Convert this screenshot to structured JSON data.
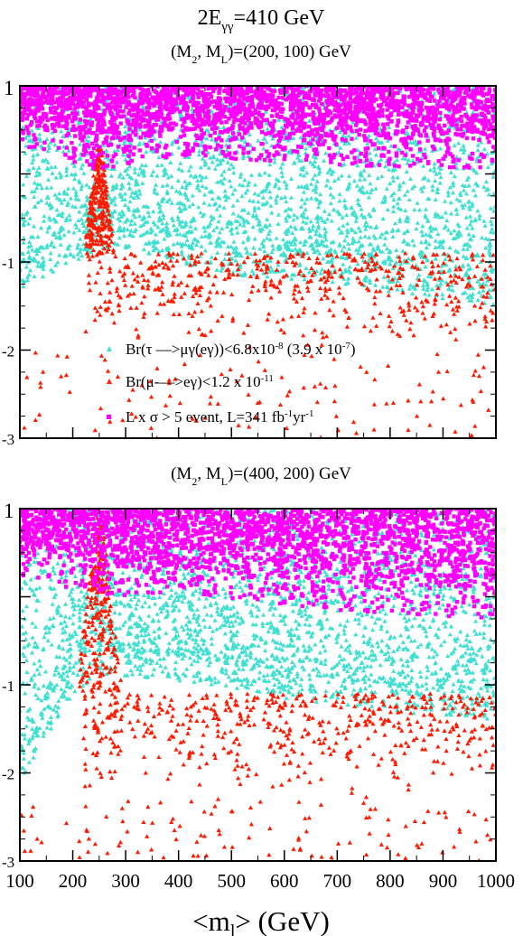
{
  "figure": {
    "title_main": "2E",
    "title_sub": "γγ",
    "title_rest": "=410 GeV",
    "xlabel_main": "<m",
    "xlabel_sub": "l",
    "xlabel_rest": ">  (GeV)"
  },
  "colors": {
    "cyan": "#40e0d0",
    "red": "#ff1a00",
    "magenta": "#ff00ff"
  },
  "legend": [
    {
      "color": "#40e0d0",
      "parts": [
        {
          "t": "Br(τ —>μγ(eγ))<6.8x10"
        },
        {
          "t": "-8",
          "sup": true
        },
        {
          "t": " (3.9 x 10"
        },
        {
          "t": "-7",
          "sup": true
        },
        {
          "t": ")"
        }
      ]
    },
    {
      "color": "#ff1a00",
      "parts": [
        {
          "t": "Br(μ-—>eγ)<1.2 x 10"
        },
        {
          "t": "-11",
          "sup": true
        }
      ]
    },
    {
      "color": "#ff00ff",
      "parts": [
        {
          "t": "L x σ > 5 event, L=341 fb"
        },
        {
          "t": "-1",
          "sup": true
        },
        {
          "t": "yr"
        },
        {
          "t": "-1",
          "sup": true
        }
      ]
    }
  ],
  "chart_data": [
    {
      "type": "scatter",
      "subtitle_parts": [
        {
          "t": "(M"
        },
        {
          "t": "2",
          "sub": true
        },
        {
          "t": ", M"
        },
        {
          "t": "L",
          "sub": true
        },
        {
          "t": ")=(200, 100) GeV"
        }
      ],
      "xlim": [
        100,
        1000
      ],
      "ylim": [
        -3,
        1
      ],
      "yticks": [
        "1",
        "-1",
        "-2",
        "-3"
      ],
      "series": [
        {
          "name": "Br(τ —>μγ(eγ))<6.8x10-8 (3.9 x 10-7)",
          "color": "#40e0d0",
          "region": "y from 1 down to approx -1.0 (x=100) / -0.55 (x=300) / -1.2 (x=1000); densest below 0"
        },
        {
          "name": "Br(μ-—>eγ)<1.2 x 10-11",
          "color": "#ff1a00",
          "region": "narrow spike at x≈250 reaching y≈0.3; broad band y≈-0.9 to -2.0 for x>250; sparse below"
        },
        {
          "name": "L x σ > 5 event, L=341 fb-1yr-1",
          "color": "#ff00ff",
          "region": "dense band y from ≈0.3–0.6 up to 1"
        }
      ],
      "legend_placement": "lower-center"
    },
    {
      "type": "scatter",
      "subtitle_parts": [
        {
          "t": "(M"
        },
        {
          "t": "2",
          "sub": true
        },
        {
          "t": ", M"
        },
        {
          "t": "L",
          "sub": true
        },
        {
          "t": ")=(400, 200) GeV"
        }
      ],
      "xlim": [
        100,
        1000
      ],
      "ylim": [
        -3,
        1
      ],
      "yticks": [
        "1",
        "-1",
        "-2",
        "-3"
      ],
      "xticks": [
        "100",
        "200",
        "300",
        "400",
        "500",
        "600",
        "700",
        "800",
        "900",
        "1000"
      ],
      "series": [
        {
          "name": "Br(τ —>μγ(eγ))<6.8x10-8 (3.9 x 10-7)",
          "color": "#40e0d0",
          "region": "y from 1 down to approx -1.8 (x=100) / -0.6 (x=300) / -1.1 (x=1000)"
        },
        {
          "name": "Br(μ-—>eγ)<1.2 x 10-11",
          "color": "#ff1a00",
          "region": "spike at x≈250 up to y≈0.9; band y≈-1.1 to -2.3 for x>250; sparse to -3"
        },
        {
          "name": "L x σ > 5 event, L=341 fb-1yr-1",
          "color": "#ff00ff",
          "region": "band y from ≈0.0–0.5 up to 1"
        }
      ]
    }
  ]
}
